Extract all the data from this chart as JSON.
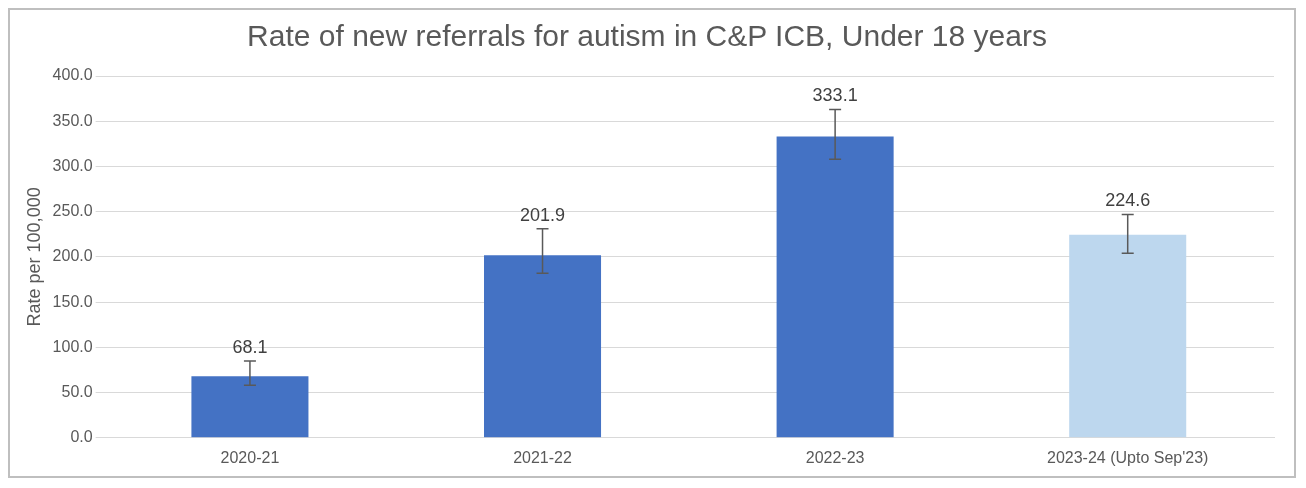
{
  "chart_data": {
    "type": "bar",
    "title": "Rate of new referrals for autism in C&P ICB, Under 18 years",
    "ylabel": "Rate per 100,000",
    "categories": [
      "2020-21",
      "2021-22",
      "2022-23",
      "2023-24 (Upto Sep'23)"
    ],
    "values": [
      68.1,
      201.9,
      333.1,
      224.6
    ],
    "colors": [
      "#4472c4",
      "#4472c4",
      "#4472c4",
      "#bdd7ee"
    ],
    "errors": [
      [
        58,
        85
      ],
      [
        182,
        231
      ],
      [
        308,
        363
      ],
      [
        204,
        247
      ]
    ],
    "ylim": [
      0,
      400
    ],
    "yticks": [
      {
        "value": 0,
        "label": "0.0"
      },
      {
        "value": 50,
        "label": "50.0"
      },
      {
        "value": 100,
        "label": "100.0"
      },
      {
        "value": 150,
        "label": "150.0"
      },
      {
        "value": 200,
        "label": "200.0"
      },
      {
        "value": 250,
        "label": "250.0"
      },
      {
        "value": 300,
        "label": "300.0"
      },
      {
        "value": 350,
        "label": "350.0"
      },
      {
        "value": 400,
        "label": "400.0"
      }
    ],
    "grid": "y",
    "data_labels": true
  }
}
